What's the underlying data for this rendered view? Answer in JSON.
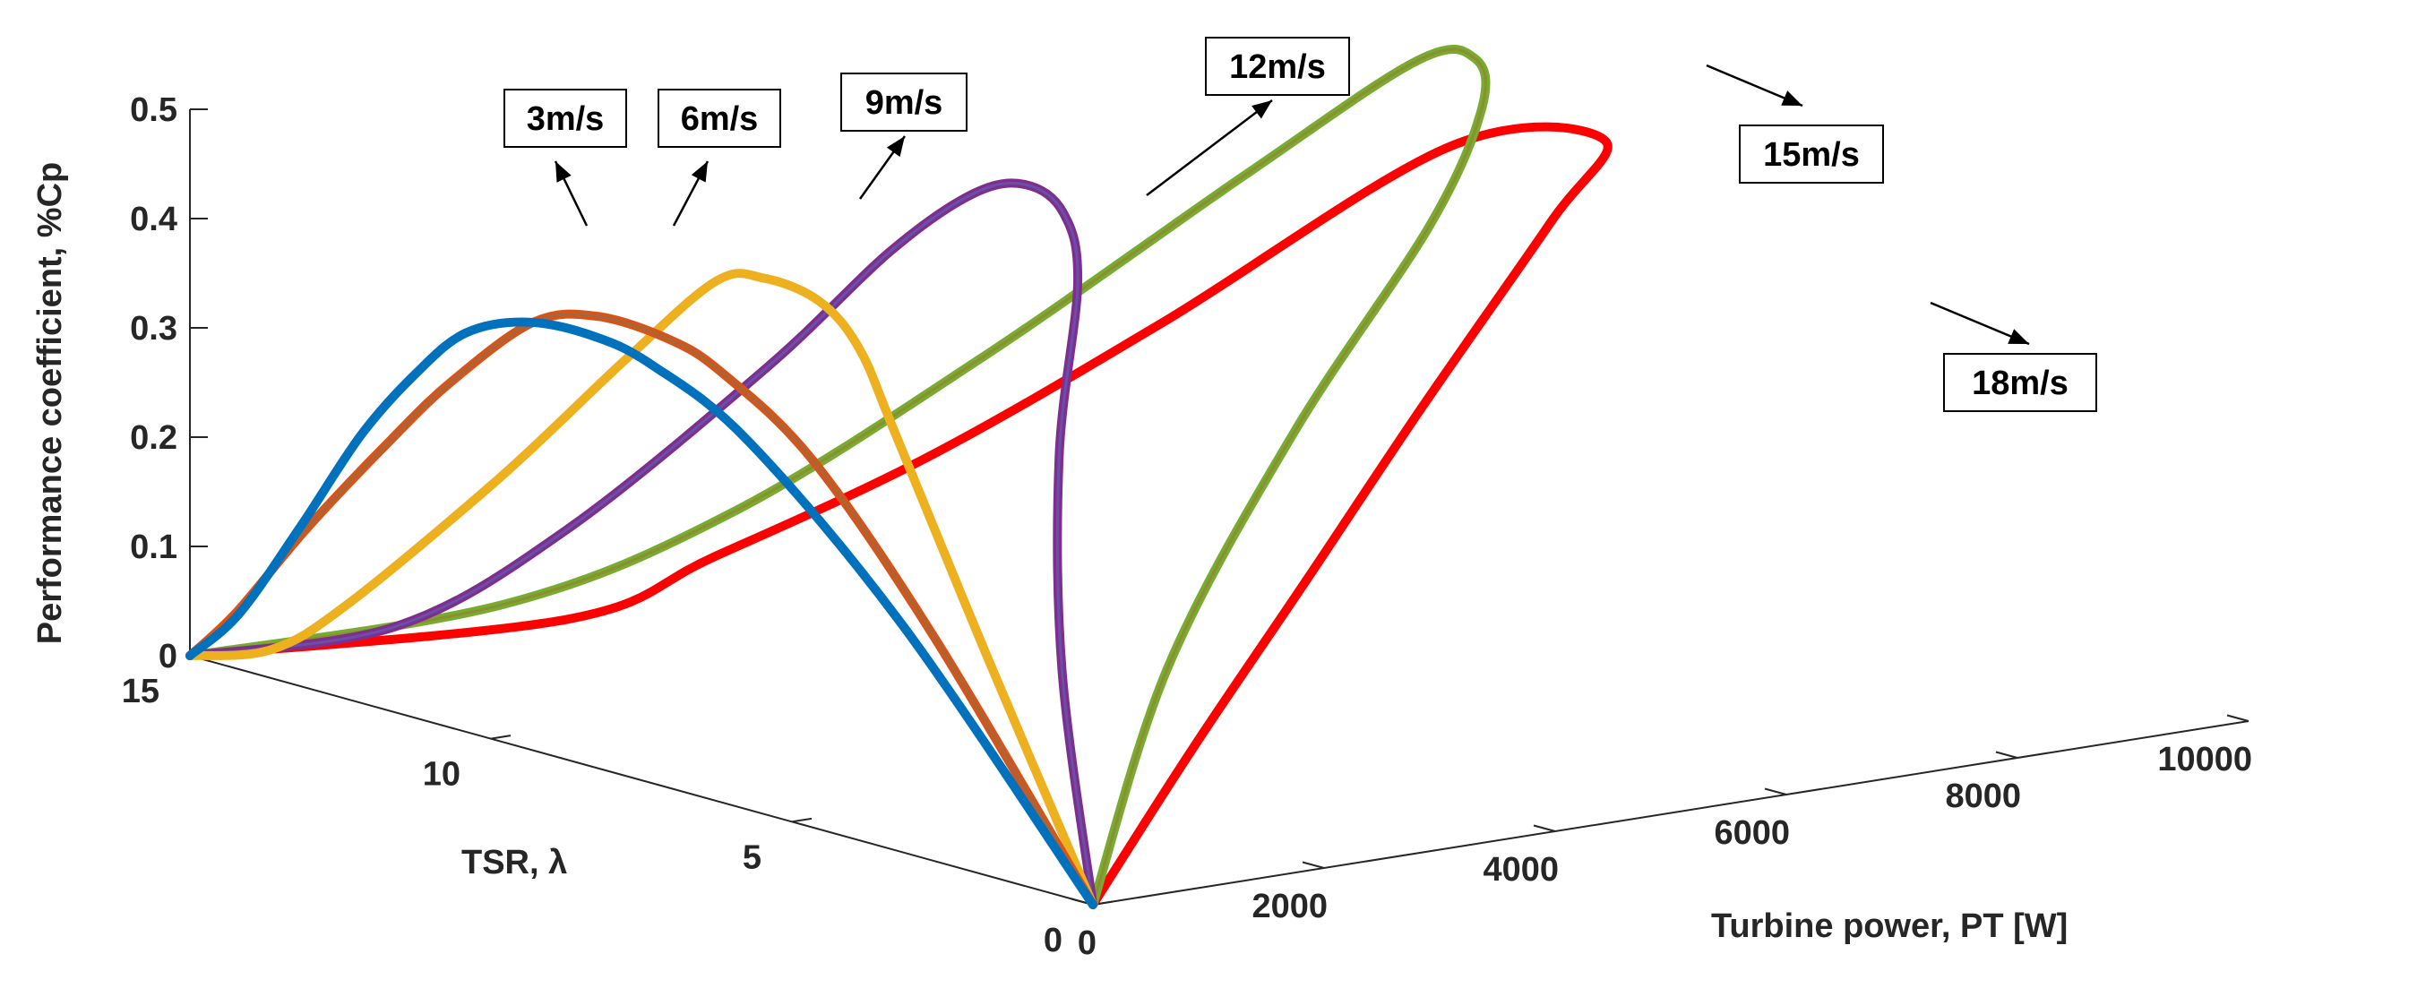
{
  "chart_data": {
    "type": "line",
    "title": "",
    "xlabel": "TSR,  λ",
    "ylabel": "Turbine power, PT [W]",
    "zlabel": "Performance coefficient, %Cp",
    "xlim": [
      0,
      15
    ],
    "ylim": [
      0,
      10000
    ],
    "zlim": [
      0,
      0.5
    ],
    "x_ticks": [
      "0",
      "5",
      "10",
      "15"
    ],
    "y_ticks": [
      "0",
      "2000",
      "4000",
      "6000",
      "8000",
      "10000"
    ],
    "z_ticks": [
      "0",
      "0.1",
      "0.2",
      "0.3",
      "0.4",
      "0.5"
    ],
    "grid": false,
    "series": [
      {
        "name": "3m/s",
        "color": "#0072BD",
        "points": [
          [
            0,
            0,
            0
          ],
          [
            3.2,
            25,
            0.206
          ],
          [
            5.8,
            43,
            0.335
          ],
          [
            7.4,
            49,
            0.38
          ],
          [
            8.4,
            50,
            0.392
          ],
          [
            9.5,
            49,
            0.388
          ],
          [
            10.5,
            45,
            0.363
          ],
          [
            11.3,
            39,
            0.315
          ],
          [
            12.2,
            30,
            0.245
          ],
          [
            13.2,
            18,
            0.145
          ],
          [
            14.2,
            6,
            0.05
          ],
          [
            15,
            0,
            0
          ]
        ]
      },
      {
        "name": "6m/s",
        "color": "#D95319",
        "points": [
          [
            0,
            0,
            0
          ],
          [
            3,
            195,
            0.195
          ],
          [
            5.3,
            340,
            0.32
          ],
          [
            6.9,
            390,
            0.375
          ],
          [
            7.8,
            400,
            0.392
          ],
          [
            9,
            398,
            0.395
          ],
          [
            10,
            370,
            0.375
          ],
          [
            11.2,
            300,
            0.305
          ],
          [
            12.1,
            230,
            0.238
          ],
          [
            13.3,
            125,
            0.14
          ],
          [
            14.3,
            40,
            0.05
          ],
          [
            15,
            0,
            0
          ]
        ]
      },
      {
        "name": "9m/s",
        "color": "#EDB120",
        "points": [
          [
            0,
            0,
            0
          ],
          [
            2.6,
            440,
            0.18
          ],
          [
            5.2,
            1000,
            0.335
          ],
          [
            6.4,
            1310,
            0.39
          ],
          [
            7.4,
            1485,
            0.415
          ],
          [
            8.4,
            1530,
            0.42
          ],
          [
            9.2,
            1530,
            0.405
          ],
          [
            10.3,
            1320,
            0.32
          ],
          [
            11.6,
            920,
            0.2
          ],
          [
            13.1,
            380,
            0.07
          ],
          [
            13.9,
            130,
            0.02
          ],
          [
            15,
            0,
            0
          ]
        ]
      },
      {
        "name": "12m/s",
        "color": "#7E2F8E",
        "points": [
          [
            0,
            0,
            0
          ],
          [
            2.3,
            930,
            0.165
          ],
          [
            4.4,
            2000,
            0.31
          ],
          [
            6.3,
            3150,
            0.42
          ],
          [
            7.4,
            3600,
            0.46
          ],
          [
            8.3,
            3740,
            0.47
          ],
          [
            9.1,
            3700,
            0.45
          ],
          [
            9.9,
            3400,
            0.39
          ],
          [
            10.8,
            2800,
            0.28
          ],
          [
            12.1,
            1750,
            0.13
          ],
          [
            13.2,
            850,
            0.04
          ],
          [
            15,
            0,
            0
          ]
        ]
      },
      {
        "name": "15m/s",
        "color": "#77AC30",
        "points": [
          [
            0,
            0,
            0
          ],
          [
            2.2,
            1800,
            0.155
          ],
          [
            4.3,
            3980,
            0.3
          ],
          [
            6.2,
            6150,
            0.425
          ],
          [
            7.4,
            7220,
            0.495
          ],
          [
            8.3,
            7630,
            0.52
          ],
          [
            9.2,
            7600,
            0.505
          ],
          [
            10.3,
            6700,
            0.4
          ],
          [
            11.6,
            5100,
            0.24
          ],
          [
            12.6,
            3450,
            0.11
          ],
          [
            13.6,
            2000,
            0.035
          ],
          [
            15,
            0,
            0
          ]
        ]
      },
      {
        "name": "18m/s",
        "color": "#FF0000",
        "points": [
          [
            0,
            0,
            0
          ],
          [
            1.6,
            1710,
            0.092
          ],
          [
            3.2,
            3520,
            0.19
          ],
          [
            4.9,
            5400,
            0.29
          ],
          [
            6.6,
            7400,
            0.4
          ],
          [
            7.35,
            8250,
            0.45
          ],
          [
            10.1,
            8350,
            0.4
          ],
          [
            11.4,
            6550,
            0.25
          ],
          [
            12.5,
            5100,
            0.135
          ],
          [
            13.5,
            3750,
            0.05
          ],
          [
            14.1,
            2800,
            0.0
          ],
          [
            15,
            0,
            0
          ]
        ]
      }
    ],
    "annotations": [
      "3m/s",
      "6m/s",
      "9m/s",
      "12m/s",
      "15m/s",
      "18m/s"
    ]
  }
}
